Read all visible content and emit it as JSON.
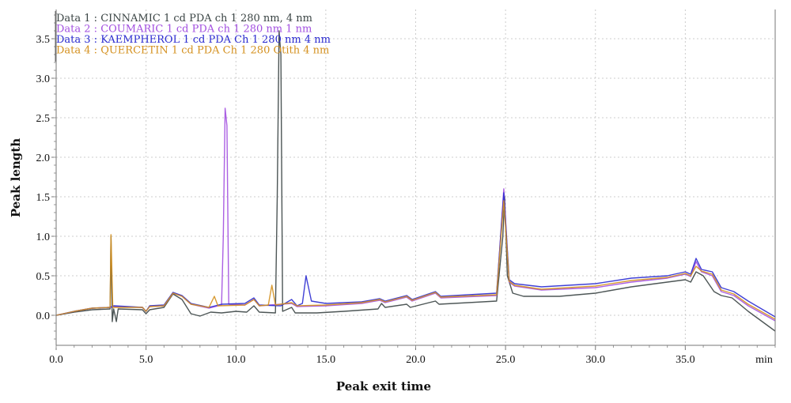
{
  "chart_data": {
    "type": "line",
    "xlabel": "Peak exit time",
    "ylabel": "Peak length",
    "x_unit_label": "min",
    "xlim": [
      0,
      40
    ],
    "ylim": [
      -0.38,
      3.87
    ],
    "x_ticks": [
      "0.0",
      "5.0",
      "10.0",
      "15.0",
      "20.0",
      "25.0",
      "30.0",
      "35.0"
    ],
    "y_ticks": [
      "0.0",
      "0.5",
      "1.0",
      "1.5",
      "2.0",
      "2.5",
      "3.0",
      "3.5"
    ],
    "grid": true,
    "legend_position": "top-left",
    "series": [
      {
        "name": "Data 1 : CINNAMIC 1 cd PDA ch 1 280 nm, 4 nm",
        "color": "#3a4444",
        "points": [
          [
            0,
            0
          ],
          [
            1,
            0.04
          ],
          [
            2,
            0.07
          ],
          [
            3,
            0.08
          ],
          [
            3.05,
            1.0
          ],
          [
            3.12,
            -0.08
          ],
          [
            3.2,
            0.08
          ],
          [
            3.35,
            -0.08
          ],
          [
            3.45,
            0.08
          ],
          [
            4.8,
            0.07
          ],
          [
            5.0,
            0.02
          ],
          [
            5.2,
            0.07
          ],
          [
            6.0,
            0.1
          ],
          [
            6.5,
            0.27
          ],
          [
            7.0,
            0.2
          ],
          [
            7.5,
            0.02
          ],
          [
            8.0,
            -0.01
          ],
          [
            8.6,
            0.04
          ],
          [
            9.2,
            0.03
          ],
          [
            10.0,
            0.05
          ],
          [
            10.6,
            0.04
          ],
          [
            11.0,
            0.12
          ],
          [
            11.3,
            0.04
          ],
          [
            12.2,
            0.03
          ],
          [
            12.3,
            1.5
          ],
          [
            12.4,
            3.6
          ],
          [
            12.5,
            3.3
          ],
          [
            12.6,
            0.05
          ],
          [
            13.1,
            0.1
          ],
          [
            13.3,
            0.03
          ],
          [
            14.5,
            0.03
          ],
          [
            16,
            0.05
          ],
          [
            17.9,
            0.08
          ],
          [
            18.1,
            0.15
          ],
          [
            18.3,
            0.1
          ],
          [
            19.5,
            0.14
          ],
          [
            19.7,
            0.1
          ],
          [
            21.1,
            0.18
          ],
          [
            21.3,
            0.14
          ],
          [
            24.5,
            0.18
          ],
          [
            24.85,
            1.0
          ],
          [
            24.95,
            1.5
          ],
          [
            25.1,
            0.5
          ],
          [
            25.4,
            0.28
          ],
          [
            26,
            0.24
          ],
          [
            28,
            0.24
          ],
          [
            30,
            0.28
          ],
          [
            32,
            0.36
          ],
          [
            34,
            0.42
          ],
          [
            35,
            0.45
          ],
          [
            35.3,
            0.42
          ],
          [
            35.6,
            0.55
          ],
          [
            36,
            0.5
          ],
          [
            36.6,
            0.3
          ],
          [
            37,
            0.25
          ],
          [
            37.6,
            0.22
          ],
          [
            38.5,
            0.05
          ],
          [
            40,
            -0.2
          ]
        ]
      },
      {
        "name": "Data 2 : COUMARIC 1 cd PDA ch 1 280 nm 1 nm",
        "color": "#a24fe0",
        "points": [
          [
            0,
            0
          ],
          [
            1,
            0.05
          ],
          [
            2,
            0.09
          ],
          [
            3,
            0.1
          ],
          [
            3.2,
            0.11
          ],
          [
            4.8,
            0.1
          ],
          [
            5.0,
            0.05
          ],
          [
            5.2,
            0.11
          ],
          [
            6.0,
            0.12
          ],
          [
            6.5,
            0.28
          ],
          [
            7.0,
            0.24
          ],
          [
            7.5,
            0.14
          ],
          [
            8.5,
            0.09
          ],
          [
            9.2,
            0.13
          ],
          [
            9.3,
            1.0
          ],
          [
            9.4,
            2.62
          ],
          [
            9.5,
            2.4
          ],
          [
            9.6,
            0.14
          ],
          [
            10.5,
            0.13
          ],
          [
            11.0,
            0.2
          ],
          [
            11.3,
            0.12
          ],
          [
            13.1,
            0.15
          ],
          [
            13.4,
            0.11
          ],
          [
            15,
            0.12
          ],
          [
            17,
            0.15
          ],
          [
            18,
            0.19
          ],
          [
            18.3,
            0.16
          ],
          [
            19.5,
            0.23
          ],
          [
            19.8,
            0.18
          ],
          [
            21.1,
            0.28
          ],
          [
            21.4,
            0.22
          ],
          [
            24.5,
            0.25
          ],
          [
            24.9,
            1.6
          ],
          [
            25.2,
            0.42
          ],
          [
            25.5,
            0.37
          ],
          [
            27,
            0.32
          ],
          [
            30,
            0.35
          ],
          [
            32,
            0.42
          ],
          [
            34,
            0.47
          ],
          [
            35,
            0.52
          ],
          [
            35.3,
            0.49
          ],
          [
            35.6,
            0.68
          ],
          [
            35.9,
            0.55
          ],
          [
            36.5,
            0.5
          ],
          [
            37,
            0.3
          ],
          [
            37.7,
            0.25
          ],
          [
            38.5,
            0.12
          ],
          [
            40,
            -0.07
          ]
        ]
      },
      {
        "name": "Data 3 : KAEMPHEROL 1 cd PDA Ch 1 280 nm 4 nm",
        "color": "#2b2bd0",
        "points": [
          [
            0,
            0
          ],
          [
            1,
            0.05
          ],
          [
            2,
            0.09
          ],
          [
            3,
            0.1
          ],
          [
            3.2,
            0.12
          ],
          [
            4.8,
            0.1
          ],
          [
            5.0,
            0.05
          ],
          [
            5.2,
            0.12
          ],
          [
            6.0,
            0.13
          ],
          [
            6.5,
            0.29
          ],
          [
            7.0,
            0.25
          ],
          [
            7.5,
            0.15
          ],
          [
            8.5,
            0.1
          ],
          [
            9.2,
            0.14
          ],
          [
            10.5,
            0.15
          ],
          [
            11.0,
            0.22
          ],
          [
            11.3,
            0.13
          ],
          [
            12.5,
            0.12
          ],
          [
            13.1,
            0.2
          ],
          [
            13.4,
            0.12
          ],
          [
            13.7,
            0.15
          ],
          [
            13.9,
            0.5
          ],
          [
            14.2,
            0.18
          ],
          [
            15,
            0.15
          ],
          [
            17,
            0.17
          ],
          [
            18,
            0.21
          ],
          [
            18.3,
            0.18
          ],
          [
            19.5,
            0.25
          ],
          [
            19.8,
            0.2
          ],
          [
            21.1,
            0.3
          ],
          [
            21.4,
            0.24
          ],
          [
            24.5,
            0.28
          ],
          [
            24.9,
            1.55
          ],
          [
            25.2,
            0.45
          ],
          [
            25.5,
            0.4
          ],
          [
            27,
            0.36
          ],
          [
            30,
            0.4
          ],
          [
            32,
            0.47
          ],
          [
            34,
            0.5
          ],
          [
            35,
            0.55
          ],
          [
            35.3,
            0.52
          ],
          [
            35.6,
            0.72
          ],
          [
            35.9,
            0.58
          ],
          [
            36.5,
            0.55
          ],
          [
            37,
            0.35
          ],
          [
            37.7,
            0.3
          ],
          [
            38.5,
            0.18
          ],
          [
            40,
            -0.02
          ]
        ]
      },
      {
        "name": "Data 4 : QUERCETIN 1 cd PDA Ch 1 280 Otith 4 nm",
        "color": "#d4901e",
        "points": [
          [
            0,
            0
          ],
          [
            1,
            0.05
          ],
          [
            2,
            0.09
          ],
          [
            3,
            0.1
          ],
          [
            3.05,
            1.02
          ],
          [
            3.15,
            0.1
          ],
          [
            4.8,
            0.1
          ],
          [
            5.0,
            0.05
          ],
          [
            5.2,
            0.11
          ],
          [
            6.0,
            0.12
          ],
          [
            6.5,
            0.28
          ],
          [
            7.0,
            0.24
          ],
          [
            7.5,
            0.14
          ],
          [
            8.5,
            0.1
          ],
          [
            8.8,
            0.24
          ],
          [
            9.0,
            0.12
          ],
          [
            10.5,
            0.13
          ],
          [
            11.0,
            0.2
          ],
          [
            11.3,
            0.12
          ],
          [
            11.8,
            0.13
          ],
          [
            12.0,
            0.38
          ],
          [
            12.2,
            0.13
          ],
          [
            13.1,
            0.16
          ],
          [
            13.4,
            0.12
          ],
          [
            15,
            0.13
          ],
          [
            17,
            0.16
          ],
          [
            18,
            0.2
          ],
          [
            18.3,
            0.17
          ],
          [
            19.5,
            0.24
          ],
          [
            19.8,
            0.19
          ],
          [
            21.1,
            0.29
          ],
          [
            21.4,
            0.23
          ],
          [
            24.5,
            0.26
          ],
          [
            24.9,
            1.45
          ],
          [
            25.2,
            0.43
          ],
          [
            25.5,
            0.38
          ],
          [
            27,
            0.33
          ],
          [
            30,
            0.37
          ],
          [
            32,
            0.44
          ],
          [
            34,
            0.48
          ],
          [
            35,
            0.53
          ],
          [
            35.3,
            0.5
          ],
          [
            35.6,
            0.62
          ],
          [
            35.9,
            0.56
          ],
          [
            36.5,
            0.52
          ],
          [
            37,
            0.32
          ],
          [
            37.7,
            0.27
          ],
          [
            38.5,
            0.14
          ],
          [
            40,
            -0.05
          ]
        ]
      }
    ]
  }
}
